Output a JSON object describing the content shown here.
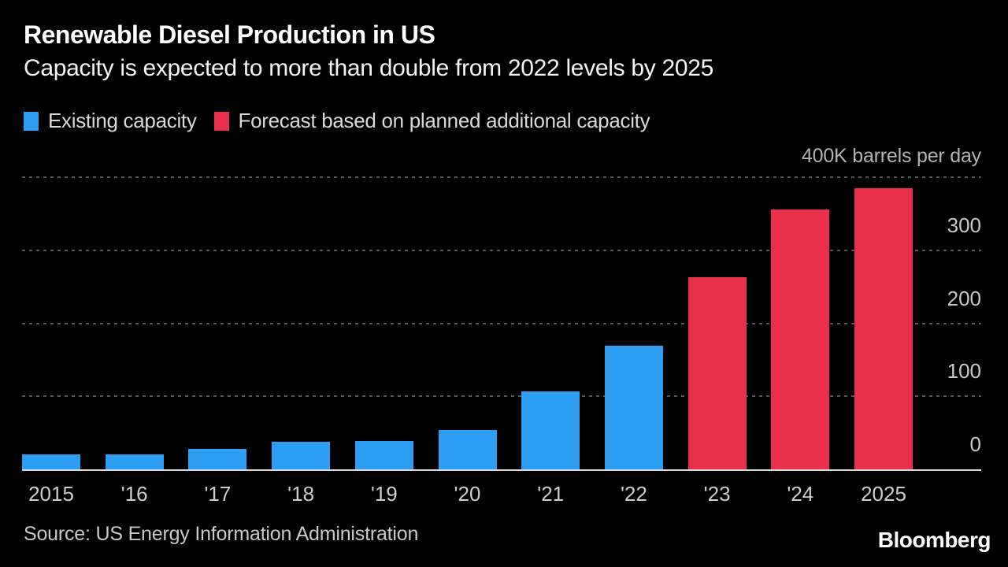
{
  "title": "Renewable Diesel Production in US",
  "subtitle": "Capacity is expected to more than double from 2022 levels by 2025",
  "source": "Source: US Energy Information Administration",
  "brand": "Bloomberg",
  "colors": {
    "background": "#000000",
    "existing_blue": "#2d9ef3",
    "forecast_red": "#e8304c",
    "gridline": "#575757",
    "baseline": "#dcdcdc",
    "title_text": "#ffffff",
    "axis_text": "#c9c9c9"
  },
  "chart_data": {
    "type": "bar",
    "title": "Renewable Diesel Production in US",
    "subtitle": "Capacity is expected to more than double from 2022 levels by 2025",
    "unit_label": "400K barrels per day",
    "value_unit": "K barrels per day",
    "categories": [
      "2015",
      "'16",
      "'17",
      "'18",
      "'19",
      "'20",
      "'21",
      "'22",
      "'23",
      "'24",
      "2025"
    ],
    "series": [
      {
        "name": "Existing capacity",
        "key": "existing",
        "color": "#2d9ef3"
      },
      {
        "name": "Forecast based on planned additional capacity",
        "key": "forecast",
        "color": "#e8304c"
      }
    ],
    "bars": [
      {
        "category": "2015",
        "value": 20,
        "series": "existing"
      },
      {
        "category": "'16",
        "value": 20,
        "series": "existing"
      },
      {
        "category": "'17",
        "value": 28,
        "series": "existing"
      },
      {
        "category": "'18",
        "value": 38,
        "series": "existing"
      },
      {
        "category": "'19",
        "value": 39,
        "series": "existing"
      },
      {
        "category": "'20",
        "value": 54,
        "series": "existing"
      },
      {
        "category": "'21",
        "value": 107,
        "series": "existing"
      },
      {
        "category": "'22",
        "value": 169,
        "series": "existing"
      },
      {
        "category": "'23",
        "value": 263,
        "series": "forecast"
      },
      {
        "category": "'24",
        "value": 356,
        "series": "forecast"
      },
      {
        "category": "2025",
        "value": 385,
        "series": "forecast"
      }
    ],
    "ylim": [
      0,
      400
    ],
    "yticks_labeled": [
      0,
      100,
      200,
      300
    ],
    "gridlines": [
      100,
      200,
      300,
      400
    ],
    "grid_style": "dotted-horizontal",
    "legend_position": "top-left",
    "ylabel": "",
    "xlabel": ""
  }
}
